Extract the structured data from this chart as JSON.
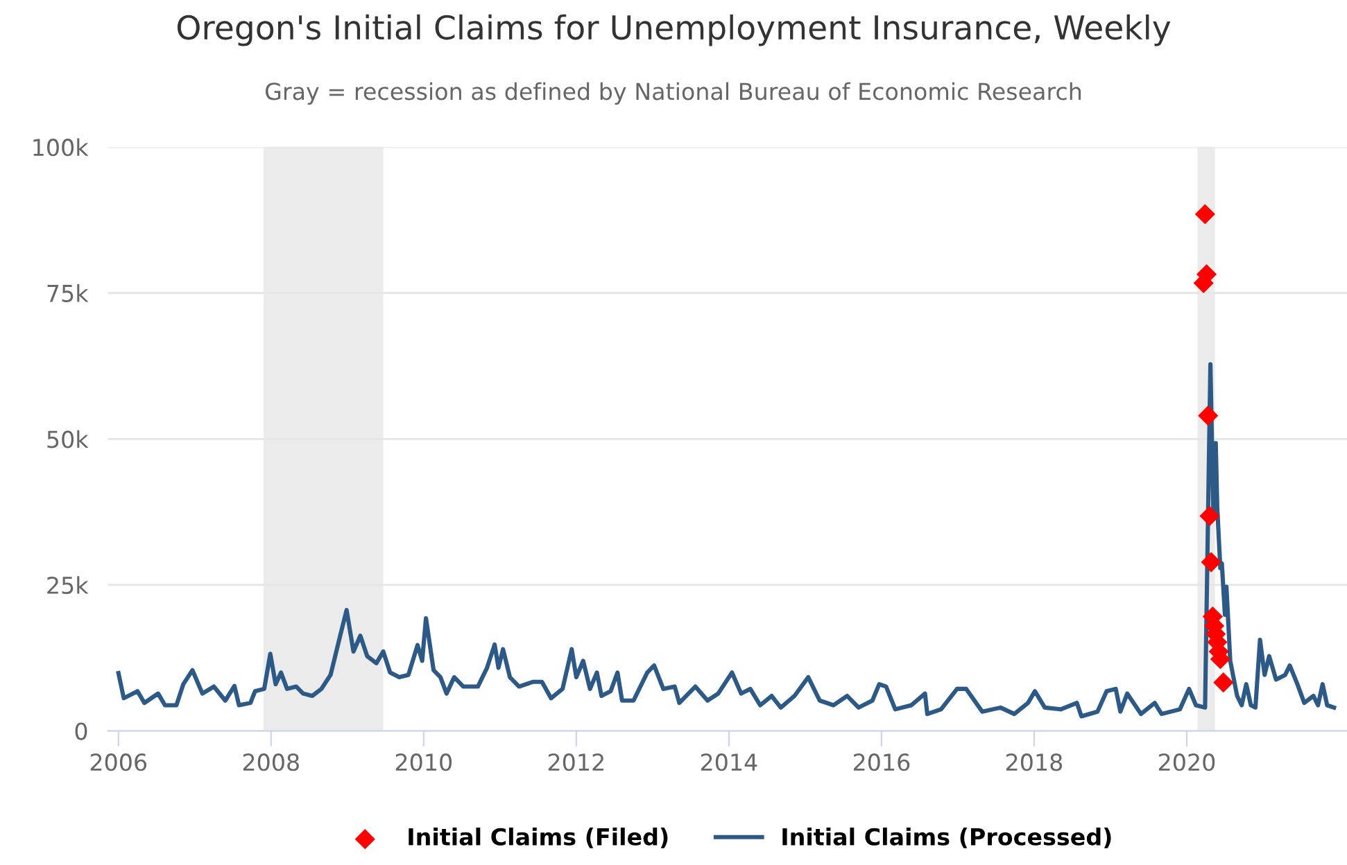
{
  "chart_data": {
    "type": "line",
    "title": "Oregon's Initial Claims for Unemployment Insurance, Weekly",
    "subtitle": "Gray = recession as defined by National Bureau of Economic Research",
    "xlim": [
      2005.86,
      2022.1
    ],
    "xticks": [
      2006,
      2008,
      2010,
      2012,
      2014,
      2016,
      2018,
      2020
    ],
    "ylim": [
      0,
      100000
    ],
    "yticks": [
      {
        "value": 0,
        "label": "0"
      },
      {
        "value": 25000,
        "label": "25k"
      },
      {
        "value": 50000,
        "label": "50k"
      },
      {
        "value": 75000,
        "label": "75k"
      },
      {
        "value": 100000,
        "label": "100k"
      }
    ],
    "grid": "y",
    "legend": "bottom",
    "bands": [
      {
        "axis": "x",
        "from": 2007.9,
        "to": 2009.47,
        "color": "#ebebeb"
      },
      {
        "axis": "x",
        "from": 2020.14,
        "to": 2020.37,
        "color": "#ebebeb"
      }
    ],
    "series": [
      {
        "name": "Initial Claims (Filed)",
        "type": "scatter",
        "marker": "diamond",
        "color": "#ff0000",
        "x": [
          2020.22,
          2020.24,
          2020.26,
          2020.28,
          2020.3,
          2020.32,
          2020.34,
          2020.36,
          2020.38,
          2020.4,
          2020.42,
          2020.44,
          2020.48
        ],
        "values": [
          76700,
          88500,
          78200,
          54000,
          36800,
          28900,
          19600,
          18000,
          16600,
          15200,
          13600,
          12300,
          8300
        ]
      },
      {
        "name": "Initial Claims (Processed)",
        "marker": "none",
        "line_style": "solid",
        "color": "#2c5985",
        "x": [
          2006.0,
          2006.07,
          2006.25,
          2006.34,
          2006.52,
          2006.61,
          2006.76,
          2006.85,
          2006.97,
          2007.1,
          2007.25,
          2007.4,
          2007.52,
          2007.58,
          2007.73,
          2007.79,
          2007.91,
          2007.99,
          2008.06,
          2008.13,
          2008.21,
          2008.33,
          2008.42,
          2008.54,
          2008.66,
          2008.78,
          2008.9,
          2008.99,
          2009.08,
          2009.17,
          2009.26,
          2009.38,
          2009.47,
          2009.56,
          2009.68,
          2009.8,
          2009.92,
          2009.98,
          2010.03,
          2010.13,
          2010.22,
          2010.3,
          2010.4,
          2010.52,
          2010.71,
          2010.83,
          2010.93,
          2010.98,
          2011.04,
          2011.13,
          2011.25,
          2011.43,
          2011.55,
          2011.67,
          2011.82,
          2011.94,
          2012.0,
          2012.09,
          2012.18,
          2012.27,
          2012.33,
          2012.45,
          2012.54,
          2012.6,
          2012.75,
          2012.93,
          2013.02,
          2013.14,
          2013.29,
          2013.35,
          2013.56,
          2013.72,
          2013.86,
          2014.04,
          2014.16,
          2014.28,
          2014.41,
          2014.56,
          2014.68,
          2014.86,
          2015.04,
          2015.19,
          2015.37,
          2015.55,
          2015.7,
          2015.88,
          2015.97,
          2016.06,
          2016.18,
          2016.39,
          2016.57,
          2016.6,
          2016.78,
          2016.99,
          2017.11,
          2017.32,
          2017.56,
          2017.74,
          2017.92,
          2018.01,
          2018.14,
          2018.35,
          2018.56,
          2018.62,
          2018.83,
          2018.95,
          2019.07,
          2019.13,
          2019.22,
          2019.4,
          2019.58,
          2019.67,
          2019.91,
          2020.03,
          2020.12,
          2020.24,
          2020.31,
          2020.35,
          2020.38,
          2020.4,
          2020.44,
          2020.46,
          2020.5,
          2020.52,
          2020.57,
          2020.66,
          2020.72,
          2020.78,
          2020.84,
          2020.9,
          2020.96,
          2021.02,
          2021.08,
          2021.17,
          2021.29,
          2021.35,
          2021.45,
          2021.54,
          2021.66,
          2021.72,
          2021.78,
          2021.84,
          2021.93
        ],
        "values": [
          9900,
          5600,
          6800,
          4800,
          6400,
          4400,
          4400,
          8000,
          10400,
          6400,
          7600,
          5200,
          7700,
          4400,
          4800,
          6800,
          7200,
          13200,
          8000,
          10000,
          7200,
          7600,
          6400,
          6000,
          7200,
          9600,
          16000,
          20700,
          13600,
          16300,
          12800,
          11600,
          13600,
          10000,
          9200,
          9600,
          14700,
          12000,
          19300,
          10400,
          9200,
          6400,
          9200,
          7600,
          7600,
          10800,
          14800,
          10800,
          14000,
          9200,
          7600,
          8400,
          8400,
          5600,
          7200,
          14000,
          9200,
          12000,
          7200,
          10000,
          6000,
          6800,
          10000,
          5200,
          5200,
          10000,
          11200,
          7200,
          7600,
          4800,
          7600,
          5200,
          6400,
          10000,
          6400,
          7200,
          4400,
          6000,
          4000,
          6000,
          9200,
          5200,
          4400,
          6000,
          4000,
          5200,
          8000,
          7600,
          3700,
          4400,
          6400,
          2900,
          3700,
          7200,
          7200,
          3300,
          4000,
          2900,
          4800,
          6800,
          4000,
          3700,
          4800,
          2500,
          3300,
          6800,
          7200,
          3300,
          6400,
          2900,
          4800,
          2900,
          3700,
          7200,
          4400,
          4000,
          62800,
          36600,
          49300,
          38200,
          27900,
          28700,
          19900,
          24700,
          12000,
          6000,
          4400,
          8000,
          4400,
          4000,
          15600,
          9600,
          12800,
          8800,
          9600,
          11200,
          8000,
          4800,
          6000,
          4400,
          8000,
          4400,
          4000
        ]
      }
    ]
  }
}
